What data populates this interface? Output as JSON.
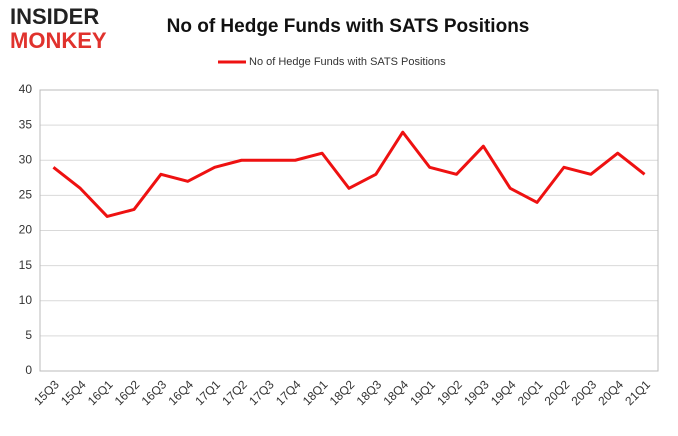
{
  "logo": [
    "INSIDER",
    "MONKEY"
  ],
  "chart_data": {
    "type": "line",
    "title": "No of Hedge Funds with SATS Positions",
    "categories": [
      "15Q3",
      "15Q4",
      "16Q1",
      "16Q2",
      "16Q3",
      "16Q4",
      "17Q1",
      "17Q2",
      "17Q3",
      "17Q4",
      "18Q1",
      "18Q2",
      "18Q3",
      "18Q4",
      "19Q1",
      "19Q2",
      "19Q3",
      "19Q4",
      "20Q1",
      "20Q2",
      "20Q3",
      "20Q4",
      "21Q1"
    ],
    "series": [
      {
        "name": "No of Hedge Funds with SATS Positions",
        "color": "#ee1111",
        "values": [
          29,
          26,
          22,
          23,
          28,
          27,
          29,
          30,
          30,
          30,
          31,
          26,
          28,
          34,
          29,
          28,
          32,
          26,
          24,
          29,
          28,
          31,
          28
        ]
      }
    ],
    "ylim": [
      0,
      40
    ],
    "yticks": [
      0,
      5,
      10,
      15,
      20,
      25,
      30,
      35,
      40
    ],
    "grid": true,
    "legend": "top"
  }
}
